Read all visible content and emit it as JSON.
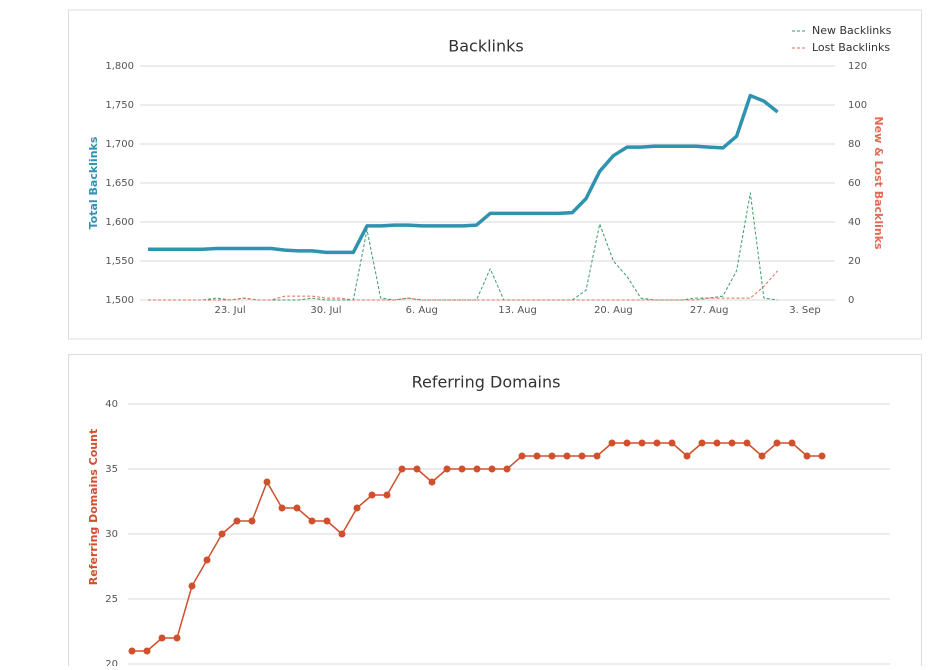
{
  "chart_data": [
    {
      "type": "line",
      "title": "Backlinks",
      "ylabel": "Total Backlinks",
      "y2label": "New & Lost Backlinks",
      "categories": [
        null,
        null,
        null,
        null,
        null,
        null,
        "23. Jul",
        null,
        null,
        null,
        null,
        null,
        null,
        "30. Jul",
        null,
        null,
        null,
        null,
        null,
        null,
        "6. Aug",
        null,
        null,
        null,
        null,
        null,
        null,
        "13. Aug",
        null,
        null,
        null,
        null,
        null,
        null,
        "20. Aug",
        null,
        null,
        null,
        null,
        null,
        null,
        "27. Aug",
        null,
        null,
        null,
        null,
        null,
        null,
        "3. Sep"
      ],
      "series": [
        {
          "color": "#2f93b0",
          "line_width": 3.5,
          "line_style": "solid",
          "values": [
            1565,
            1565,
            1565,
            1565,
            1565,
            1566,
            1566,
            1566,
            1566,
            1566,
            1564,
            1563,
            1563,
            1561,
            1561,
            1561,
            1595,
            1595,
            1596,
            1596,
            1595,
            1595,
            1595,
            1595,
            1596,
            1611,
            1611,
            1611,
            1611,
            1611,
            1611,
            1612,
            1630,
            1665,
            1685,
            1696,
            1696,
            1697,
            1697,
            1697,
            1697,
            1696,
            1695,
            1710,
            1762,
            1755,
            1741,
            null,
            null
          ]
        },
        {
          "name": "New Backlinks",
          "axis": "y2",
          "color": "#3a9a6a",
          "line_width": 1,
          "line_style": "dashed",
          "values": [
            0,
            0,
            0,
            0,
            0,
            1,
            0,
            1,
            0,
            0,
            0,
            0,
            1,
            0,
            0,
            0,
            36,
            1,
            0,
            1,
            0,
            0,
            0,
            0,
            0,
            16,
            0,
            0,
            0,
            0,
            0,
            0,
            5,
            39,
            20,
            12,
            1,
            0,
            0,
            0,
            1,
            1,
            2,
            15,
            55,
            1,
            0,
            null,
            null
          ]
        },
        {
          "name": "Lost Backlinks",
          "axis": "y2",
          "color": "#e36b55",
          "line_width": 1,
          "line_style": "dashed",
          "values": [
            0,
            0,
            0,
            0,
            0,
            0,
            0,
            1,
            0,
            0,
            2,
            2,
            2,
            1,
            1,
            0,
            0,
            0,
            0,
            1,
            0,
            0,
            0,
            0,
            0,
            0,
            0,
            0,
            0,
            0,
            0,
            0,
            0,
            0,
            0,
            0,
            0,
            0,
            0,
            0,
            0,
            1,
            1,
            1,
            1,
            7,
            15,
            null,
            null
          ]
        }
      ],
      "ylim": [
        1500,
        1800
      ],
      "yticks": [
        {
          "value": 1500,
          "label": "1,500"
        },
        {
          "value": 1550,
          "label": "1,550"
        },
        {
          "value": 1600,
          "label": "1,600"
        },
        {
          "value": 1650,
          "label": "1,650"
        },
        {
          "value": 1700,
          "label": "1,700"
        },
        {
          "value": 1750,
          "label": "1,750"
        },
        {
          "value": 1800,
          "label": "1,800"
        }
      ],
      "y2lim": [
        0,
        120
      ],
      "y2ticks": [
        0,
        20,
        40,
        60,
        80,
        100,
        120
      ],
      "grid": true,
      "legend": "top-right"
    },
    {
      "type": "line",
      "title": "Referring Domains",
      "ylabel": "Referring Domains Count",
      "color": "#d0502e",
      "markers": true,
      "values": [
        21,
        21,
        22,
        22,
        26,
        28,
        30,
        31,
        31,
        34,
        32,
        32,
        31,
        31,
        30,
        32,
        33,
        33,
        35,
        35,
        34,
        35,
        35,
        35,
        35,
        35,
        36,
        36,
        36,
        36,
        36,
        36,
        37,
        37,
        37,
        37,
        37,
        36,
        37,
        37,
        37,
        37,
        36,
        37,
        37,
        36,
        36
      ],
      "ylim": [
        20,
        40
      ],
      "yticks": [
        20,
        25,
        30,
        35,
        40
      ],
      "grid": true
    }
  ]
}
